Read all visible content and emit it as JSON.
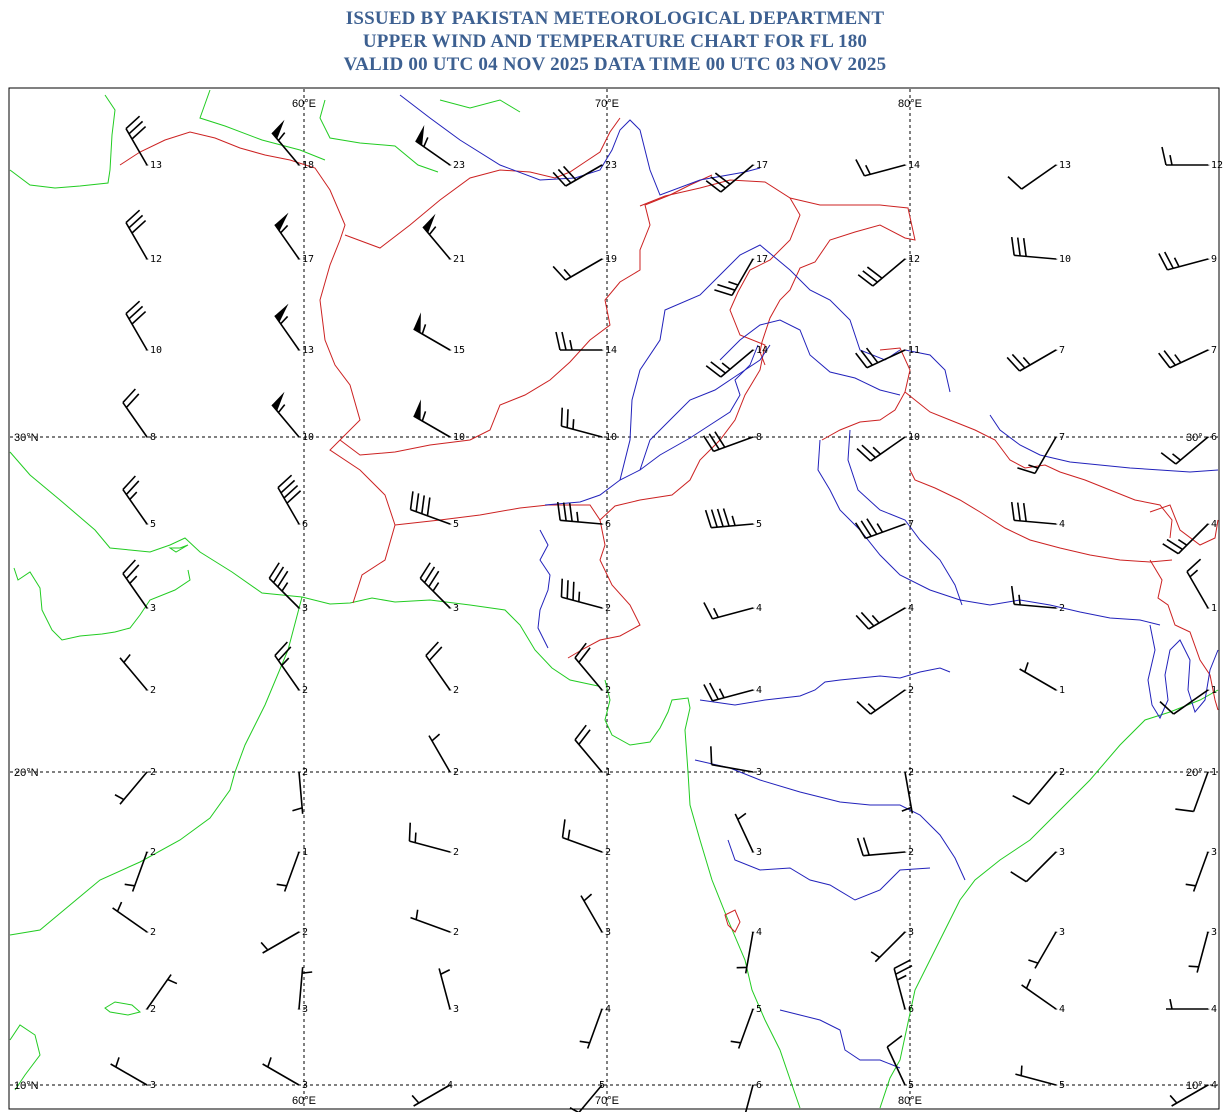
{
  "header": {
    "line1": "ISSUED BY PAKISTAN METEOROLOGICAL DEPARTMENT",
    "line2": "UPPER WIND AND TEMPERATURE CHART FOR FL 180",
    "line3": "VALID 00 UTC 04 NOV 2025 DATA TIME 00 UTC 03 NOV 2025"
  },
  "colors": {
    "title": "#3d6091",
    "coastline": "#22cc22",
    "border": "#cc2222",
    "river": "#2222bb",
    "barb": "#000000"
  },
  "grid": {
    "lon_labels": [
      "60°E",
      "70°E",
      "80°E"
    ],
    "lat_labels": [
      "30°N",
      "20°N",
      "10°N"
    ],
    "right_lat_labels": [
      "30°",
      "20°",
      "10°"
    ]
  },
  "station_grid": {
    "lon_start": 55,
    "lon_step": 5,
    "lat_start": 35,
    "lat_step": -2.5,
    "columns": 8,
    "rows": 12
  },
  "stations": [
    {
      "row": 0,
      "col": 0,
      "temp": "-13",
      "dir": 330,
      "spd": 30
    },
    {
      "row": 0,
      "col": 1,
      "temp": "-18",
      "dir": 320,
      "spd": 55
    },
    {
      "row": 0,
      "col": 2,
      "temp": "-23",
      "dir": 305,
      "spd": 55
    },
    {
      "row": 0,
      "col": 3,
      "temp": "-23",
      "dir": 240,
      "spd": 30
    },
    {
      "row": 0,
      "col": 4,
      "temp": "-17",
      "dir": 230,
      "spd": 30
    },
    {
      "row": 0,
      "col": 5,
      "temp": "-14",
      "dir": 255,
      "spd": 15
    },
    {
      "row": 0,
      "col": 6,
      "temp": "-13",
      "dir": 235,
      "spd": 10
    },
    {
      "row": 0,
      "col": 7,
      "temp": "-12",
      "dir": 270,
      "spd": 15
    },
    {
      "row": 1,
      "col": 0,
      "temp": "-12",
      "dir": 330,
      "spd": 30
    },
    {
      "row": 1,
      "col": 1,
      "temp": "-17",
      "dir": 325,
      "spd": 55
    },
    {
      "row": 1,
      "col": 2,
      "temp": "-21",
      "dir": 320,
      "spd": 55
    },
    {
      "row": 1,
      "col": 3,
      "temp": "-19",
      "dir": 240,
      "spd": 15
    },
    {
      "row": 1,
      "col": 4,
      "temp": "-17",
      "dir": 210,
      "spd": 25
    },
    {
      "row": 1,
      "col": 5,
      "temp": "-12",
      "dir": 230,
      "spd": 30
    },
    {
      "row": 1,
      "col": 6,
      "temp": "-10",
      "dir": 275,
      "spd": 30
    },
    {
      "row": 1,
      "col": 7,
      "temp": "-9",
      "dir": 255,
      "spd": 25
    },
    {
      "row": 2,
      "col": 0,
      "temp": "-10",
      "dir": 330,
      "spd": 30
    },
    {
      "row": 2,
      "col": 1,
      "temp": "-13",
      "dir": 325,
      "spd": 55
    },
    {
      "row": 2,
      "col": 2,
      "temp": "-15",
      "dir": 300,
      "spd": 55
    },
    {
      "row": 2,
      "col": 3,
      "temp": "-14",
      "dir": 270,
      "spd": 25
    },
    {
      "row": 2,
      "col": 4,
      "temp": "-14",
      "dir": 230,
      "spd": 25
    },
    {
      "row": 2,
      "col": 5,
      "temp": "-11",
      "dir": 245,
      "spd": 30
    },
    {
      "row": 2,
      "col": 6,
      "temp": "-7",
      "dir": 240,
      "spd": 25
    },
    {
      "row": 2,
      "col": 7,
      "temp": "-7",
      "dir": 245,
      "spd": 25
    },
    {
      "row": 3,
      "col": 0,
      "temp": "-8",
      "dir": 325,
      "spd": 20
    },
    {
      "row": 3,
      "col": 1,
      "temp": "-10",
      "dir": 320,
      "spd": 55
    },
    {
      "row": 3,
      "col": 2,
      "temp": "-10",
      "dir": 300,
      "spd": 55
    },
    {
      "row": 3,
      "col": 3,
      "temp": "-10",
      "dir": 285,
      "spd": 25
    },
    {
      "row": 3,
      "col": 4,
      "temp": "-8",
      "dir": 250,
      "spd": 30
    },
    {
      "row": 3,
      "col": 5,
      "temp": "-10",
      "dir": 235,
      "spd": 25
    },
    {
      "row": 3,
      "col": 6,
      "temp": "-7",
      "dir": 210,
      "spd": 15
    },
    {
      "row": 3,
      "col": 7,
      "temp": "-6",
      "dir": 230,
      "spd": 15
    },
    {
      "row": 4,
      "col": 0,
      "temp": "-5",
      "dir": 325,
      "spd": 25
    },
    {
      "row": 4,
      "col": 1,
      "temp": "-6",
      "dir": 330,
      "spd": 40
    },
    {
      "row": 4,
      "col": 2,
      "temp": "-5",
      "dir": 290,
      "spd": 40
    },
    {
      "row": 4,
      "col": 3,
      "temp": "-6",
      "dir": 275,
      "spd": 35
    },
    {
      "row": 4,
      "col": 4,
      "temp": "-5",
      "dir": 265,
      "spd": 45
    },
    {
      "row": 4,
      "col": 5,
      "temp": "-7",
      "dir": 250,
      "spd": 35
    },
    {
      "row": 4,
      "col": 6,
      "temp": "-4",
      "dir": 275,
      "spd": 30
    },
    {
      "row": 4,
      "col": 7,
      "temp": "-4",
      "dir": 225,
      "spd": 25
    },
    {
      "row": 5,
      "col": 0,
      "temp": "-3",
      "dir": 325,
      "spd": 25
    },
    {
      "row": 5,
      "col": 1,
      "temp": "-3",
      "dir": 315,
      "spd": 35
    },
    {
      "row": 5,
      "col": 2,
      "temp": "-3",
      "dir": 315,
      "spd": 35
    },
    {
      "row": 5,
      "col": 3,
      "temp": "-2",
      "dir": 285,
      "spd": 35
    },
    {
      "row": 5,
      "col": 4,
      "temp": "-4",
      "dir": 255,
      "spd": 15
    },
    {
      "row": 5,
      "col": 5,
      "temp": "-4",
      "dir": 240,
      "spd": 25
    },
    {
      "row": 5,
      "col": 6,
      "temp": "-2",
      "dir": 275,
      "spd": 15
    },
    {
      "row": 5,
      "col": 7,
      "temp": "-1",
      "dir": 330,
      "spd": 15
    },
    {
      "row": 6,
      "col": 0,
      "temp": "-2",
      "dir": 320,
      "spd": 5
    },
    {
      "row": 6,
      "col": 1,
      "temp": "-2",
      "dir": 325,
      "spd": 25
    },
    {
      "row": 6,
      "col": 2,
      "temp": "-2",
      "dir": 325,
      "spd": 20
    },
    {
      "row": 6,
      "col": 3,
      "temp": "-2",
      "dir": 320,
      "spd": 20
    },
    {
      "row": 6,
      "col": 4,
      "temp": "-4",
      "dir": 255,
      "spd": 25
    },
    {
      "row": 6,
      "col": 5,
      "temp": "-2",
      "dir": 235,
      "spd": 15
    },
    {
      "row": 6,
      "col": 6,
      "temp": "-1",
      "dir": 300,
      "spd": 5
    },
    {
      "row": 6,
      "col": 7,
      "temp": "-1",
      "dir": 235,
      "spd": 10
    },
    {
      "row": 7,
      "col": 0,
      "temp": "-2",
      "dir": 220,
      "spd": 5
    },
    {
      "row": 7,
      "col": 1,
      "temp": "-2",
      "dir": 175,
      "spd": 5
    },
    {
      "row": 7,
      "col": 2,
      "temp": "-2",
      "dir": 330,
      "spd": 5
    },
    {
      "row": 7,
      "col": 3,
      "temp": "-1",
      "dir": 320,
      "spd": 20
    },
    {
      "row": 7,
      "col": 4,
      "temp": "-3",
      "dir": 280,
      "spd": 10
    },
    {
      "row": 7,
      "col": 5,
      "temp": "-2",
      "dir": 170,
      "spd": 5
    },
    {
      "row": 7,
      "col": 6,
      "temp": "-2",
      "dir": 220,
      "spd": 10
    },
    {
      "row": 7,
      "col": 7,
      "temp": "-1",
      "dir": 200,
      "spd": 10
    },
    {
      "row": 8,
      "col": 0,
      "temp": "-2",
      "dir": 200,
      "spd": 5
    },
    {
      "row": 8,
      "col": 1,
      "temp": "-1",
      "dir": 200,
      "spd": 5
    },
    {
      "row": 8,
      "col": 2,
      "temp": "-2",
      "dir": 285,
      "spd": 15
    },
    {
      "row": 8,
      "col": 3,
      "temp": "-2",
      "dir": 290,
      "spd": 15
    },
    {
      "row": 8,
      "col": 4,
      "temp": "-3",
      "dir": 335,
      "spd": 5
    },
    {
      "row": 8,
      "col": 5,
      "temp": "-2",
      "dir": 265,
      "spd": 20
    },
    {
      "row": 8,
      "col": 6,
      "temp": "-3",
      "dir": 225,
      "spd": 10
    },
    {
      "row": 8,
      "col": 7,
      "temp": "-3",
      "dir": 200,
      "spd": 5
    },
    {
      "row": 9,
      "col": 0,
      "temp": "-2",
      "dir": 305,
      "spd": 5
    },
    {
      "row": 9,
      "col": 1,
      "temp": "-2",
      "dir": 240,
      "spd": 5
    },
    {
      "row": 9,
      "col": 2,
      "temp": "-2",
      "dir": 290,
      "spd": 5
    },
    {
      "row": 9,
      "col": 3,
      "temp": "-3",
      "dir": 330,
      "spd": 5
    },
    {
      "row": 9,
      "col": 4,
      "temp": "-4",
      "dir": 190,
      "spd": 5
    },
    {
      "row": 9,
      "col": 5,
      "temp": "-3",
      "dir": 225,
      "spd": 5
    },
    {
      "row": 9,
      "col": 6,
      "temp": "-3",
      "dir": 210,
      "spd": 5
    },
    {
      "row": 9,
      "col": 7,
      "temp": "-3",
      "dir": 195,
      "spd": 5
    },
    {
      "row": 10,
      "col": 0,
      "temp": "-2",
      "dir": 35,
      "spd": 5
    },
    {
      "row": 10,
      "col": 1,
      "temp": "-3",
      "dir": 5,
      "spd": 5
    },
    {
      "row": 10,
      "col": 2,
      "temp": "-3",
      "dir": 345,
      "spd": 5
    },
    {
      "row": 10,
      "col": 3,
      "temp": "-4",
      "dir": 200,
      "spd": 5
    },
    {
      "row": 10,
      "col": 4,
      "temp": "-5",
      "dir": 200,
      "spd": 5
    },
    {
      "row": 10,
      "col": 5,
      "temp": "-6",
      "dir": 345,
      "spd": 25
    },
    {
      "row": 10,
      "col": 6,
      "temp": "-4",
      "dir": 305,
      "spd": 5
    },
    {
      "row": 10,
      "col": 7,
      "temp": "-4",
      "dir": 270,
      "spd": 5
    },
    {
      "row": 11,
      "col": 0,
      "temp": "-3",
      "dir": 300,
      "spd": 5
    },
    {
      "row": 11,
      "col": 1,
      "temp": "-3",
      "dir": 300,
      "spd": 5
    },
    {
      "row": 11,
      "col": 2,
      "temp": "4",
      "dir": 240,
      "spd": 5
    },
    {
      "row": 11,
      "col": 3,
      "temp": "5",
      "dir": 220,
      "spd": 5
    },
    {
      "row": 11,
      "col": 4,
      "temp": "-6",
      "dir": 195,
      "spd": 5
    },
    {
      "row": 11,
      "col": 5,
      "temp": "-5",
      "dir": 335,
      "spd": 10
    },
    {
      "row": 11,
      "col": 6,
      "temp": "-5",
      "dir": 285,
      "spd": 5
    },
    {
      "row": 11,
      "col": 7,
      "temp": "-4",
      "dir": 240,
      "spd": 5
    }
  ]
}
